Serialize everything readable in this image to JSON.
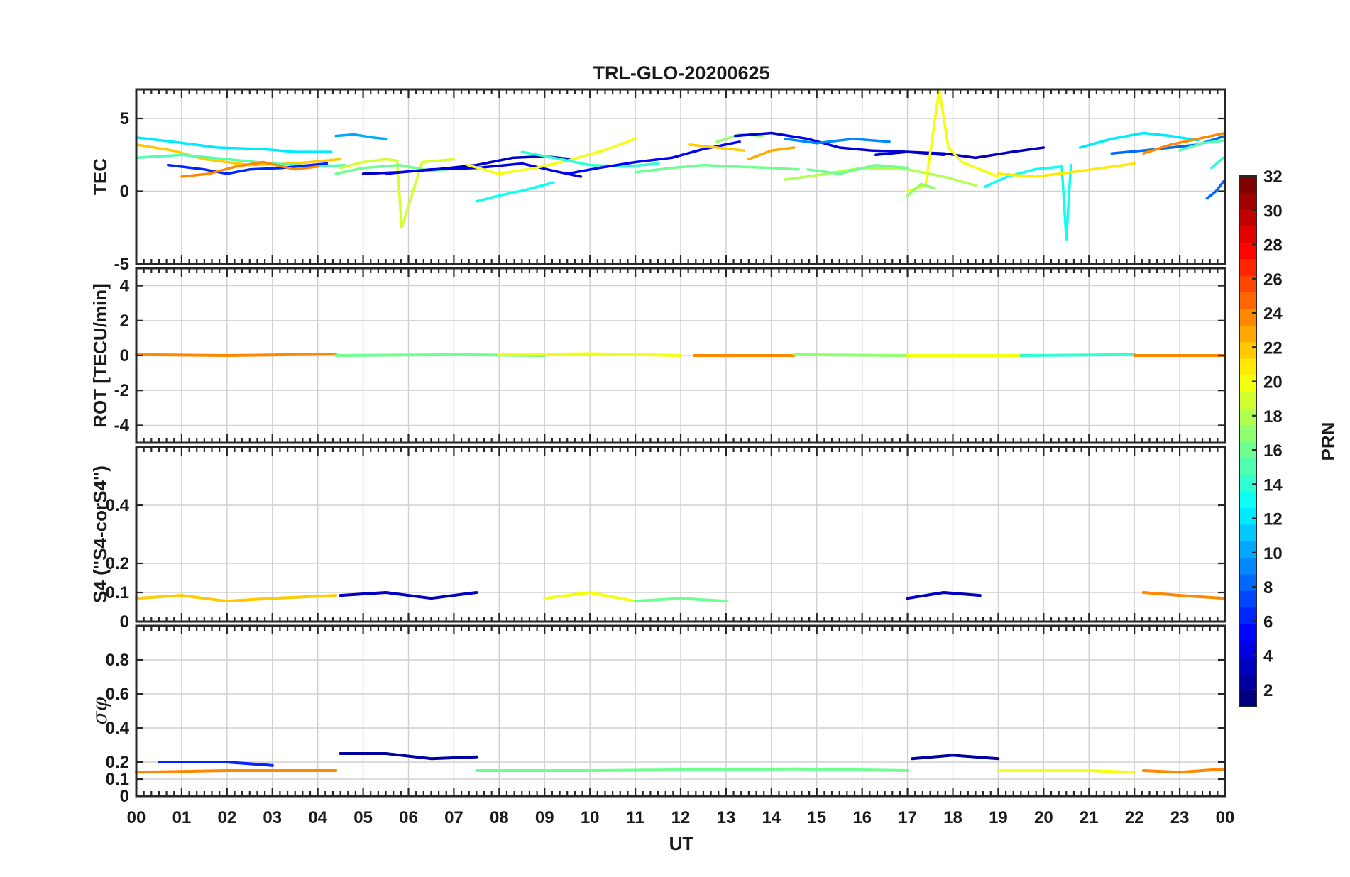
{
  "chart_data": {
    "type": "line",
    "title": "TRL-GLO-20200625",
    "xlabel": "UT",
    "x_ticks": [
      "00",
      "01",
      "02",
      "03",
      "04",
      "05",
      "06",
      "07",
      "08",
      "09",
      "10",
      "11",
      "12",
      "13",
      "14",
      "15",
      "16",
      "17",
      "18",
      "19",
      "20",
      "21",
      "22",
      "23",
      "00"
    ],
    "xlim_hours": [
      0,
      24
    ],
    "grid": true,
    "panels": [
      {
        "id": "tec",
        "ylabel": "TEC",
        "ylim": [
          -5,
          7
        ],
        "y_ticks": [
          -5,
          0,
          5
        ],
        "series": [
          {
            "prn": 22,
            "x": [
              0.0,
              0.8,
              1.5,
              2.5,
              3.5,
              4.5
            ],
            "y": [
              3.2,
              2.8,
              2.2,
              1.8,
              1.9,
              2.2
            ]
          },
          {
            "prn": 12,
            "x": [
              0.0,
              0.8,
              1.8,
              2.8,
              3.5,
              4.3
            ],
            "y": [
              3.7,
              3.4,
              3.0,
              2.9,
              2.7,
              2.7
            ]
          },
          {
            "prn": 15,
            "x": [
              0.0,
              1.0,
              2.0,
              3.0,
              4.0,
              4.6
            ],
            "y": [
              2.3,
              2.5,
              2.2,
              1.9,
              1.7,
              1.8
            ]
          },
          {
            "prn": 6,
            "x": [
              0.7,
              1.5,
              2.0,
              2.5,
              3.2,
              4.2
            ],
            "y": [
              1.8,
              1.5,
              1.2,
              1.5,
              1.6,
              1.9
            ]
          },
          {
            "prn": 24,
            "x": [
              1.0,
              1.6,
              2.2,
              2.8,
              3.5,
              4.0
            ],
            "y": [
              1.0,
              1.2,
              1.7,
              2.0,
              1.5,
              1.7
            ]
          },
          {
            "prn": 10,
            "x": [
              4.4,
              4.8,
              5.2,
              5.5
            ],
            "y": [
              3.8,
              3.9,
              3.7,
              3.6
            ]
          },
          {
            "prn": 19,
            "x": [
              4.5,
              5.0,
              5.5,
              5.75,
              5.85,
              6.3,
              7.0
            ],
            "y": [
              1.6,
              2.0,
              2.2,
              2.1,
              -2.5,
              2.0,
              2.2
            ]
          },
          {
            "prn": 16,
            "x": [
              4.4,
              5.0,
              5.8,
              6.5,
              7.2
            ],
            "y": [
              1.2,
              1.6,
              1.8,
              1.4,
              1.6
            ]
          },
          {
            "prn": 3,
            "x": [
              5.0,
              5.8,
              6.6,
              7.5,
              8.3,
              9.0,
              9.6
            ],
            "y": [
              1.2,
              1.3,
              1.5,
              1.8,
              2.3,
              2.4,
              2.2
            ]
          },
          {
            "prn": 4,
            "x": [
              5.5,
              6.5,
              7.5,
              8.5,
              9.2,
              9.8
            ],
            "y": [
              1.2,
              1.5,
              1.6,
              1.9,
              1.4,
              1.0
            ]
          },
          {
            "prn": 13,
            "x": [
              7.5,
              8.0,
              8.6,
              9.2
            ],
            "y": [
              -0.7,
              -0.3,
              0.1,
              0.6
            ]
          },
          {
            "prn": 20,
            "x": [
              7.3,
              8.0,
              8.8,
              9.5,
              10.3,
              11.0
            ],
            "y": [
              1.8,
              1.2,
              1.6,
              2.1,
              2.8,
              3.6
            ]
          },
          {
            "prn": 14,
            "x": [
              8.5,
              9.2,
              10.0,
              10.8,
              11.5
            ],
            "y": [
              2.7,
              2.3,
              1.8,
              1.7,
              1.9
            ]
          },
          {
            "prn": 5,
            "x": [
              9.5,
              10.2,
              11.0,
              11.8,
              12.5,
              13.3
            ],
            "y": [
              1.2,
              1.6,
              2.0,
              2.3,
              2.9,
              3.4
            ]
          },
          {
            "prn": 16,
            "x": [
              11.0,
              11.8,
              12.5,
              13.2,
              14.0,
              14.6
            ],
            "y": [
              1.3,
              1.6,
              1.8,
              1.7,
              1.6,
              1.5
            ]
          },
          {
            "prn": 22,
            "x": [
              12.2,
              12.8,
              13.4
            ],
            "y": [
              3.2,
              3.0,
              2.8
            ]
          },
          {
            "prn": 17,
            "x": [
              12.8,
              13.3,
              13.8
            ],
            "y": [
              3.4,
              3.9,
              3.8
            ]
          },
          {
            "prn": 4,
            "x": [
              13.2,
              14.0,
              14.8,
              15.5,
              16.2,
              17.0,
              17.8
            ],
            "y": [
              3.8,
              4.0,
              3.6,
              3.0,
              2.8,
              2.7,
              2.5
            ]
          },
          {
            "prn": 23,
            "x": [
              13.5,
              14.0,
              14.5
            ],
            "y": [
              2.2,
              2.8,
              3.0
            ]
          },
          {
            "prn": 9,
            "x": [
              14.3,
              15.0,
              15.8,
              16.6
            ],
            "y": [
              3.6,
              3.3,
              3.6,
              3.4
            ]
          },
          {
            "prn": 18,
            "x": [
              14.3,
              15.0,
              16.0,
              17.0,
              17.8,
              18.5
            ],
            "y": [
              0.8,
              1.1,
              1.6,
              1.5,
              1.0,
              0.4
            ]
          },
          {
            "prn": 16,
            "x": [
              14.8,
              15.5,
              16.3,
              17.0
            ],
            "y": [
              1.5,
              1.2,
              1.8,
              1.6
            ]
          },
          {
            "prn": 3,
            "x": [
              16.3,
              17.0,
              17.8,
              18.5,
              19.3,
              20.0
            ],
            "y": [
              2.5,
              2.7,
              2.6,
              2.3,
              2.7,
              3.0
            ]
          },
          {
            "prn": 20,
            "x": [
              17.0,
              17.4,
              17.7,
              17.9,
              18.2,
              18.6,
              19.0
            ],
            "y": [
              0.0,
              0.4,
              7.0,
              3.0,
              2.0,
              1.5,
              1.0
            ]
          },
          {
            "prn": 17,
            "x": [
              17.0,
              17.3,
              17.6
            ],
            "y": [
              -0.3,
              0.5,
              0.2
            ]
          },
          {
            "prn": 13,
            "x": [
              18.7,
              19.2,
              19.8,
              20.4,
              20.5,
              20.6
            ],
            "y": [
              0.3,
              1.0,
              1.5,
              1.7,
              -3.3,
              1.8
            ]
          },
          {
            "prn": 21,
            "x": [
              19.0,
              19.8,
              20.6,
              21.3,
              22.0
            ],
            "y": [
              1.2,
              1.0,
              1.3,
              1.6,
              1.9
            ]
          },
          {
            "prn": 8,
            "x": [
              21.5,
              22.2,
              22.8,
              23.4,
              24.0
            ],
            "y": [
              2.6,
              2.8,
              3.0,
              3.2,
              3.8
            ]
          },
          {
            "prn": 12,
            "x": [
              20.8,
              21.5,
              22.2,
              22.8,
              23.4
            ],
            "y": [
              3.0,
              3.6,
              4.0,
              3.8,
              3.5
            ]
          },
          {
            "prn": 24,
            "x": [
              22.2,
              22.8,
              23.4,
              24.0
            ],
            "y": [
              2.6,
              3.2,
              3.6,
              4.0
            ]
          },
          {
            "prn": 15,
            "x": [
              23.0,
              23.5,
              24.0
            ],
            "y": [
              2.8,
              3.3,
              3.5
            ]
          },
          {
            "prn": 8,
            "x": [
              23.6,
              23.8,
              24.0
            ],
            "y": [
              -0.5,
              0.0,
              0.8
            ]
          },
          {
            "prn": 14,
            "x": [
              23.7,
              23.85,
              24.0
            ],
            "y": [
              1.6,
              2.0,
              2.4
            ]
          }
        ]
      },
      {
        "id": "rot",
        "ylabel": "ROT [TECU/min]",
        "ylim": [
          -5,
          5
        ],
        "y_ticks": [
          -4,
          -2,
          0,
          2,
          4
        ],
        "series": [
          {
            "prn": 24,
            "x": [
              0.0,
              2.0,
              4.4
            ],
            "y": [
              0.05,
              0.0,
              0.08
            ]
          },
          {
            "prn": 16,
            "x": [
              4.4,
              7.0,
              9.0
            ],
            "y": [
              0.0,
              0.05,
              0.0
            ]
          },
          {
            "prn": 20,
            "x": [
              8.0,
              10.0,
              12.0
            ],
            "y": [
              0.05,
              0.1,
              0.0
            ]
          },
          {
            "prn": 24,
            "x": [
              12.3,
              14.5
            ],
            "y": [
              0.0,
              0.0
            ]
          },
          {
            "prn": 17,
            "x": [
              14.5,
              17.0
            ],
            "y": [
              0.05,
              0.0
            ]
          },
          {
            "prn": 20,
            "x": [
              17.0,
              19.5
            ],
            "y": [
              0.0,
              0.0
            ]
          },
          {
            "prn": 14,
            "x": [
              19.5,
              22.0
            ],
            "y": [
              0.0,
              0.05
            ]
          },
          {
            "prn": 24,
            "x": [
              22.0,
              24.0
            ],
            "y": [
              0.0,
              0.0
            ]
          }
        ]
      },
      {
        "id": "s4",
        "ylabel": "S4 (\"S4-corS4\")",
        "ylim": [
          0,
          0.6
        ],
        "y_ticks": [
          0,
          0.1,
          0.2,
          0.4
        ],
        "series": [
          {
            "prn": 22,
            "x": [
              0.0,
              1.0,
              2.0,
              3.0,
              4.4
            ],
            "y": [
              0.08,
              0.09,
              0.07,
              0.08,
              0.09
            ]
          },
          {
            "prn": 3,
            "x": [
              4.5,
              5.5,
              6.5,
              7.5
            ],
            "y": [
              0.09,
              0.1,
              0.08,
              0.1
            ]
          },
          {
            "prn": 20,
            "x": [
              9.0,
              10.0,
              11.0
            ],
            "y": [
              0.08,
              0.1,
              0.07
            ]
          },
          {
            "prn": 16,
            "x": [
              11.0,
              12.0,
              13.0
            ],
            "y": [
              0.07,
              0.08,
              0.07
            ]
          },
          {
            "prn": 3,
            "x": [
              17.0,
              17.8,
              18.6
            ],
            "y": [
              0.08,
              0.1,
              0.09
            ]
          },
          {
            "prn": 24,
            "x": [
              22.2,
              23.0,
              24.0
            ],
            "y": [
              0.1,
              0.09,
              0.08
            ]
          }
        ]
      },
      {
        "id": "sigma",
        "ylabel": "σφ",
        "ylim": [
          0,
          1
        ],
        "y_ticks": [
          0,
          0.1,
          0.2,
          0.4,
          0.6,
          0.8
        ],
        "series": [
          {
            "prn": 24,
            "x": [
              0.0,
              2.0,
              4.4
            ],
            "y": [
              0.14,
              0.15,
              0.15
            ]
          },
          {
            "prn": 6,
            "x": [
              0.5,
              2.0,
              3.0
            ],
            "y": [
              0.2,
              0.2,
              0.18
            ]
          },
          {
            "prn": 2,
            "x": [
              4.5,
              5.5,
              6.5,
              7.5
            ],
            "y": [
              0.25,
              0.25,
              0.22,
              0.23
            ]
          },
          {
            "prn": 16,
            "x": [
              7.5,
              10.0,
              14.5,
              17.0
            ],
            "y": [
              0.15,
              0.15,
              0.16,
              0.15
            ]
          },
          {
            "prn": 2,
            "x": [
              17.1,
              18.0,
              19.0
            ],
            "y": [
              0.22,
              0.24,
              0.22
            ]
          },
          {
            "prn": 20,
            "x": [
              19.0,
              21.0,
              22.0
            ],
            "y": [
              0.15,
              0.15,
              0.14
            ]
          },
          {
            "prn": 24,
            "x": [
              22.2,
              23.0,
              24.0
            ],
            "y": [
              0.15,
              0.14,
              0.16
            ]
          }
        ]
      }
    ],
    "colorbar": {
      "label": "PRN",
      "range": [
        1,
        32
      ],
      "ticks": [
        2,
        4,
        6,
        8,
        10,
        12,
        14,
        16,
        18,
        20,
        22,
        24,
        26,
        28,
        30,
        32
      ],
      "colormap": "jet"
    }
  }
}
